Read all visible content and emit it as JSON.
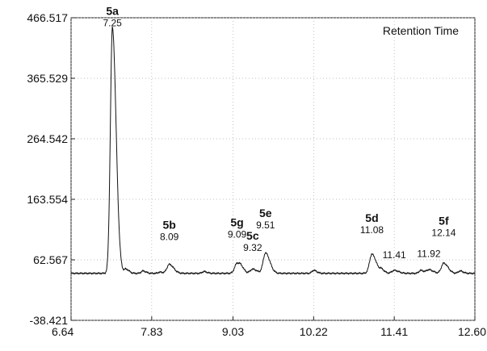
{
  "chart_data": {
    "type": "line",
    "legend": "Retention Time",
    "legend_position": "top-right",
    "grid": "dotted",
    "xlim": [
      6.64,
      12.6
    ],
    "ylim": [
      -38.421,
      466.517
    ],
    "x_ticks": [
      "6.64",
      "7.83",
      "9.03",
      "10.22",
      "11.41",
      "12.60"
    ],
    "y_ticks": [
      "466.517",
      "365.529",
      "264.542",
      "163.554",
      "62.567",
      "-38.421"
    ],
    "baseline": 40,
    "peaks": [
      {
        "label": "5a",
        "rt": "7.25",
        "x": 7.25,
        "y": 450,
        "label_y": 455
      },
      {
        "label": "5b",
        "rt": "8.09",
        "x": 8.09,
        "y": 55,
        "label_y": 98
      },
      {
        "label": "5g",
        "rt": "9.09",
        "x": 9.09,
        "y": 57,
        "label_y": 102
      },
      {
        "label": "5c",
        "rt": "9.32",
        "x": 9.32,
        "y": 47,
        "label_y": 80
      },
      {
        "label": "5e",
        "rt": "9.51",
        "x": 9.51,
        "y": 74,
        "label_y": 118
      },
      {
        "label": "5d",
        "rt": "11.08",
        "x": 11.08,
        "y": 72,
        "label_y": 110
      },
      {
        "label": "",
        "rt": "11.41",
        "x": 11.41,
        "y": 45,
        "label_y": 68
      },
      {
        "label": "",
        "rt": "11.92",
        "x": 11.92,
        "y": 46,
        "label_y": 70
      },
      {
        "label": "5f",
        "rt": "12.14",
        "x": 12.14,
        "y": 57,
        "label_y": 105
      }
    ],
    "minor_peaks": [
      {
        "x": 7.45,
        "y": 47
      },
      {
        "x": 7.7,
        "y": 44
      },
      {
        "x": 7.95,
        "y": 42
      },
      {
        "x": 8.6,
        "y": 43
      },
      {
        "x": 9.15,
        "y": 44
      },
      {
        "x": 10.22,
        "y": 45
      },
      {
        "x": 11.22,
        "y": 46
      },
      {
        "x": 11.8,
        "y": 45
      },
      {
        "x": 12.38,
        "y": 44
      }
    ]
  }
}
